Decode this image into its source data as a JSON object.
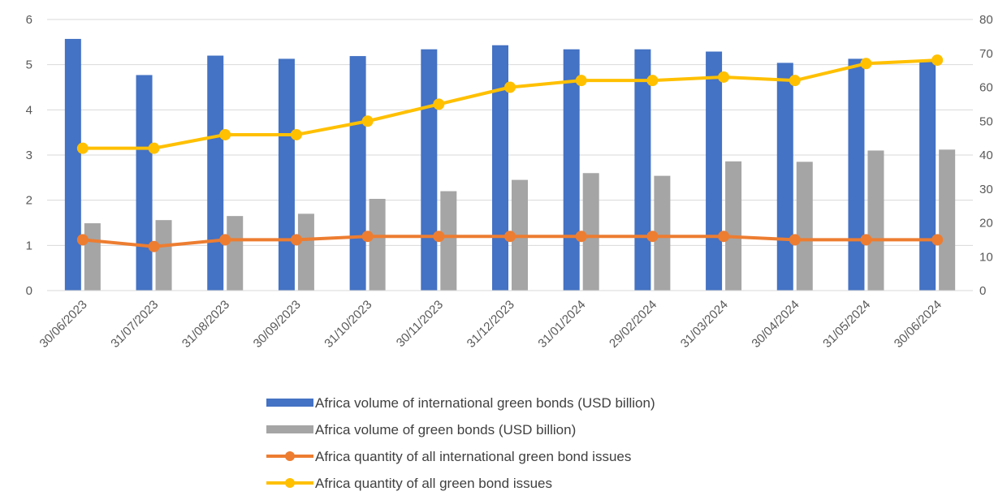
{
  "chart_data": {
    "type": "bar",
    "title": "",
    "xlabel": "",
    "ylabel": "",
    "ylim": [
      0,
      6
    ],
    "y2lim": [
      0,
      80
    ],
    "yticks": [
      "0",
      "1",
      "2",
      "3",
      "4",
      "5",
      "6"
    ],
    "y2ticks": [
      "0",
      "10",
      "20",
      "30",
      "40",
      "50",
      "60",
      "70",
      "80"
    ],
    "grid": true,
    "legend_position": "bottom",
    "categories": [
      "30/06/2023",
      "31/07/2023",
      "31/08/2023",
      "30/09/2023",
      "31/10/2023",
      "30/11/2023",
      "31/12/2023",
      "31/01/2024",
      "29/02/2024",
      "31/03/2024",
      "30/04/2024",
      "31/05/2024",
      "30/06/2024"
    ],
    "series": [
      {
        "name": "Africa volume of international green bonds (USD billion)",
        "kind": "bar",
        "axis": "left",
        "color": "#4472C4",
        "values": [
          5.57,
          4.77,
          5.2,
          5.13,
          5.19,
          5.34,
          5.43,
          5.34,
          5.34,
          5.29,
          5.04,
          5.13,
          5.1
        ]
      },
      {
        "name": "Africa volume of  green bonds (USD billion)",
        "kind": "bar",
        "axis": "left",
        "color": "#A5A5A5",
        "values": [
          1.49,
          1.56,
          1.65,
          1.7,
          2.03,
          2.2,
          2.45,
          2.6,
          2.54,
          2.86,
          2.85,
          3.1,
          3.12
        ]
      },
      {
        "name": "Africa quantity of all international green bond issues",
        "kind": "line",
        "axis": "right",
        "color": "#ED7D31",
        "values": [
          15,
          13,
          15,
          15,
          16,
          16,
          16,
          16,
          16,
          16,
          15,
          15,
          15
        ]
      },
      {
        "name": "Africa quantity of all  green bond issues",
        "kind": "line",
        "axis": "right",
        "color": "#FFC000",
        "values": [
          42,
          42,
          46,
          46,
          50,
          55,
          60,
          62,
          62,
          63,
          62,
          67,
          68
        ]
      }
    ]
  }
}
